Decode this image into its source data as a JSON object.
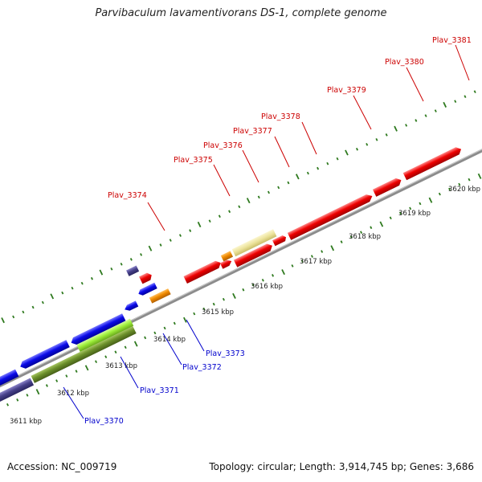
{
  "title": "Parvibaculum lavamentivorans DS-1, complete genome",
  "accession_text": "Accession: NC_009719",
  "topology_text": "Topology: circular; Length: 3,914,745 bp; Genes: 3,686",
  "colors": {
    "backbone": "#8c8c8c",
    "tick": "#2f7a1f",
    "forward_label": "#cc0000",
    "reverse_label": "#0000cc",
    "red": "#ee0000",
    "blue": "#0a0ae8",
    "navy": "#47418a",
    "orange": "#f08a00",
    "khaki": "#ece39a",
    "lime": "#9eef3a",
    "olive": "#6b8f2a"
  },
  "kbp_labels": [
    "3611 kbp",
    "3612 kbp",
    "3613 kbp",
    "3614 kbp",
    "3615 kbp",
    "3616 kbp",
    "3617 kbp",
    "3618 kbp",
    "3619 kbp",
    "3620 kbp"
  ],
  "forward_gene_labels": [
    "Plav_3374",
    "Plav_3375",
    "Plav_3376",
    "Plav_3377",
    "Plav_3378",
    "Plav_3379",
    "Plav_3380",
    "Plav_3381"
  ],
  "reverse_gene_labels": [
    "Plav_3370",
    "Plav_3371",
    "Plav_3372",
    "Plav_3373"
  ]
}
